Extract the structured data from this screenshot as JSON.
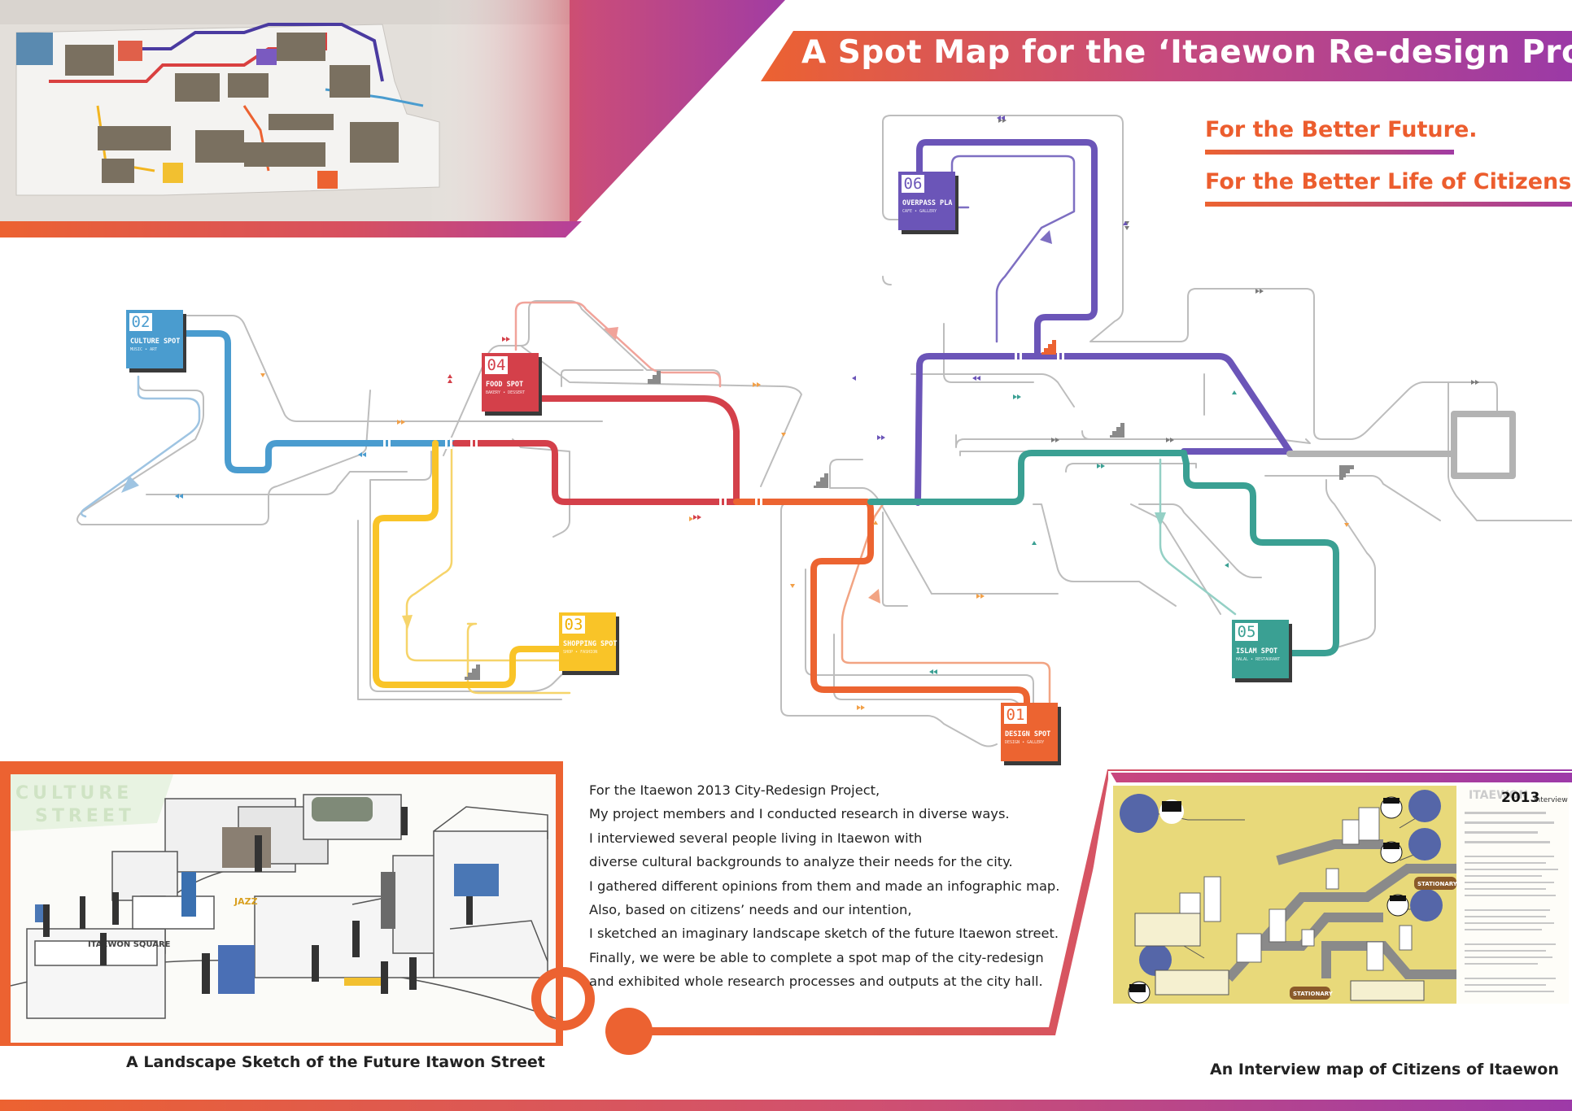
{
  "header": {
    "title": "A Spot Map for the ‘Itaewon Re-design Project.’",
    "taglines": [
      "For the Better Future.",
      "For the Better Life of Citizens."
    ],
    "colors": {
      "orange": "#ec6231",
      "magenta": "#c64a7d",
      "purple": "#9b3aa6"
    }
  },
  "spots": [
    {
      "num": "02",
      "name": "CULTURE SPOT",
      "sub": "MUSIC • ART",
      "color": "#4a9ccf"
    },
    {
      "num": "04",
      "name": "FOOD SPOT",
      "sub": "BAKERY • DESSERT",
      "color": "#d4404a"
    },
    {
      "num": "06",
      "name": "OVERPASS PLA",
      "sub": "CAFE • GALLERY",
      "color": "#6b55b8"
    },
    {
      "num": "03",
      "name": "SHOPPING SPOT",
      "sub": "SHOP • FASHION",
      "color": "#f9c428"
    },
    {
      "num": "05",
      "name": "ISLAM SPOT",
      "sub": "HALAL • RESTAURANT",
      "color": "#3aa093"
    },
    {
      "num": "01",
      "name": "DESIGN SPOT",
      "sub": "DESIGN • GALLERY",
      "color": "#ec6431"
    }
  ],
  "route_colors": {
    "blue": "#4a9ccf",
    "red": "#d4404a",
    "yellow": "#f9c428",
    "orange": "#ec6431",
    "purple": "#6b55b8",
    "teal": "#3aa093",
    "gray": "#a7a7a7",
    "thin": "#bdbdbd"
  },
  "sketch": {
    "caption": "A Landscape Sketch of the Future Itawon Street",
    "signs": [
      "CULTURE",
      "STREET",
      "ITAEWON SQUARE",
      "JAZZ"
    ]
  },
  "description": [
    "For the Itaewon 2013 City-Redesign Project,",
    "My project members and I conducted research in diverse ways.",
    "I interviewed several people living in Itaewon with",
    "diverse cultural backgrounds to analyze their needs for the city.",
    "I gathered different opinions from them and made an infographic map.",
    "Also, based on citizens’ needs and our intention,",
    "I sketched an imaginary landscape sketch of the future Itaewon street.",
    "Finally, we were be able to complete a spot map of the city-redesign",
    "and exhibited whole research processes and outputs at the city hall."
  ],
  "interview": {
    "caption": "An Interview map of Citizens of Itaewon",
    "heading": "2013",
    "heading_small": "ITAEWON",
    "heading_tail": "interview",
    "sign_labels": [
      "STATIONARY",
      "STATIONARY"
    ],
    "background_color": "#e8d97a"
  }
}
